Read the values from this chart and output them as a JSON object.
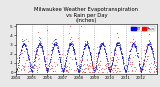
{
  "title": "Milwaukee Weather Evapotranspiration\nvs Rain per Day\n(Inches)",
  "title_fontsize": 3.8,
  "background_color": "#e8e8e8",
  "plot_bg_color": "#ffffff",
  "legend_labels": [
    "ET",
    "Rain"
  ],
  "legend_colors": [
    "#0000ff",
    "#ff0000"
  ],
  "et_color": "#0000dd",
  "rain_color": "#dd0000",
  "dot_size": 0.8,
  "ylim": [
    -0.02,
    0.52
  ],
  "ytick_labels": [
    "0",
    ".1",
    ".2",
    ".3",
    ".4",
    ".5"
  ],
  "ytick_vals": [
    0.0,
    0.1,
    0.2,
    0.3,
    0.4,
    0.5
  ],
  "grid_color": "#999999",
  "grid_style": ":",
  "n_years": 9,
  "start_year": 2004,
  "xlabel_fontsize": 2.8,
  "ylabel_fontsize": 2.8
}
